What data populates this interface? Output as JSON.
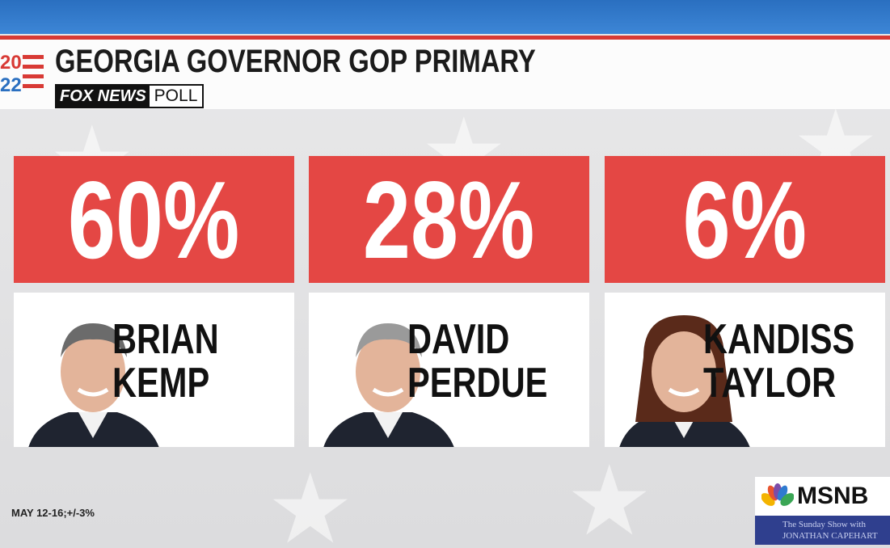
{
  "header": {
    "title": "GEORGIA GOVERNOR GOP PRIMARY",
    "year_top": "20",
    "year_bottom": "22",
    "source_brand": "FOX NEWS",
    "source_type": "POLL"
  },
  "candidates": [
    {
      "percent": "60%",
      "first_name": "BRIAN",
      "last_name": "KEMP"
    },
    {
      "percent": "28%",
      "first_name": "DAVID",
      "last_name": "PERDUE"
    },
    {
      "percent": "6%",
      "first_name": "KANDISS",
      "last_name": "TAYLOR"
    }
  ],
  "footer": {
    "note": "MAY 12-16;+/-3%"
  },
  "network": {
    "name": "MSNB",
    "show_line1": "The Sunday Show with",
    "show_line2": "JONATHAN CAPEHART"
  }
}
